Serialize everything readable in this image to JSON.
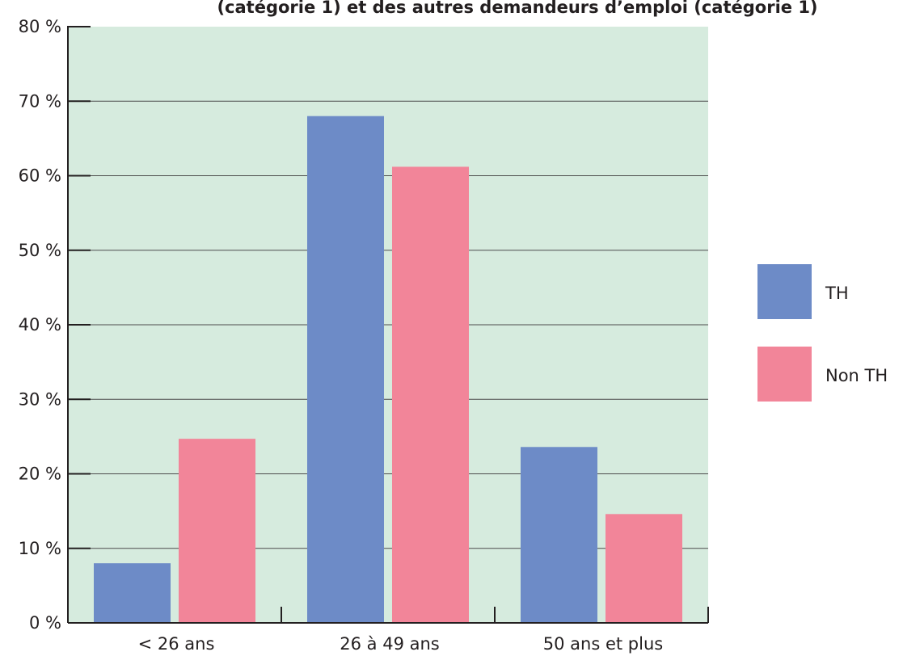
{
  "chart_data": {
    "type": "bar",
    "title": "(catégorie 1) et des autres demandeurs d’emploi (catégorie 1)",
    "categories": [
      "< 26 ans",
      "26 à 49 ans",
      "50 ans et plus"
    ],
    "series": [
      {
        "name": "TH",
        "values": [
          8,
          68,
          23.6
        ],
        "color": "#6d8bc7"
      },
      {
        "name": "Non TH",
        "values": [
          24.7,
          61.2,
          14.6
        ],
        "color": "#f28599"
      }
    ],
    "y_ticks": [
      "0 %",
      "10 %",
      "20 %",
      "30 %",
      "40 %",
      "50 %",
      "60 %",
      "70 %",
      "80 %"
    ],
    "ylim": [
      0,
      80
    ],
    "xlabel": "",
    "ylabel": "",
    "grid": true,
    "legend_position": "right",
    "plot_background": "#d6ebde",
    "grid_color": "#4d4d4d"
  }
}
